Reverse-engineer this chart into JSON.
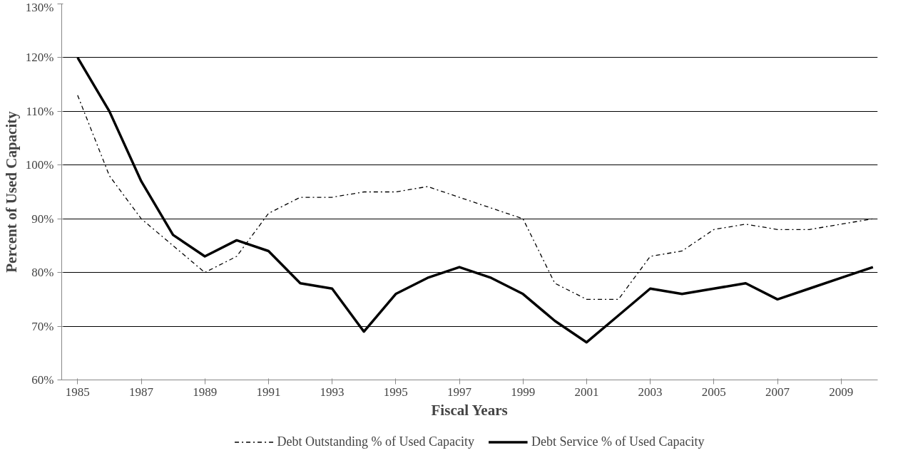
{
  "chart_data": {
    "type": "line",
    "xlabel": "Fiscal Years",
    "ylabel": "Percent of Used Capacity",
    "x": [
      1985,
      1986,
      1987,
      1988,
      1989,
      1990,
      1991,
      1992,
      1993,
      1994,
      1995,
      1996,
      1997,
      1998,
      1999,
      2000,
      2001,
      2002,
      2003,
      2004,
      2005,
      2006,
      2007,
      2008,
      2009,
      2010
    ],
    "series": [
      {
        "name": "Debt Outstanding % of Used Capacity",
        "color": "#000000",
        "line_style": "dashdot",
        "values": [
          113,
          98,
          90,
          85,
          80,
          83,
          91,
          94,
          94,
          95,
          95,
          96,
          94,
          92,
          90,
          78,
          75,
          75,
          83,
          84,
          88,
          89,
          88,
          88,
          89,
          90
        ]
      },
      {
        "name": "Debt Service % of Used Capacity",
        "color": "#000000",
        "line_style": "solid",
        "values": [
          120,
          110,
          97,
          87,
          83,
          86,
          84,
          78,
          77,
          69,
          76,
          79,
          81,
          79,
          76,
          71,
          67,
          72,
          77,
          76,
          77,
          78,
          75,
          77,
          79,
          81
        ]
      }
    ],
    "xlim": [
      1984.5,
      2010.15
    ],
    "xticks": [
      1985,
      1987,
      1989,
      1991,
      1993,
      1995,
      1997,
      1999,
      2001,
      2003,
      2005,
      2007,
      2009
    ],
    "ylim": [
      60,
      130
    ],
    "yticks": [
      {
        "value": 60,
        "label": "60%"
      },
      {
        "value": 70,
        "label": "70%"
      },
      {
        "value": 80,
        "label": "80%"
      },
      {
        "value": 90,
        "label": "90%"
      },
      {
        "value": 100,
        "label": "100%"
      },
      {
        "value": 110,
        "label": "110%"
      },
      {
        "value": 120,
        "label": "120%"
      },
      {
        "value": 130,
        "label": "130%"
      }
    ],
    "grid": "y",
    "legend": "bottom",
    "marker": "none"
  }
}
